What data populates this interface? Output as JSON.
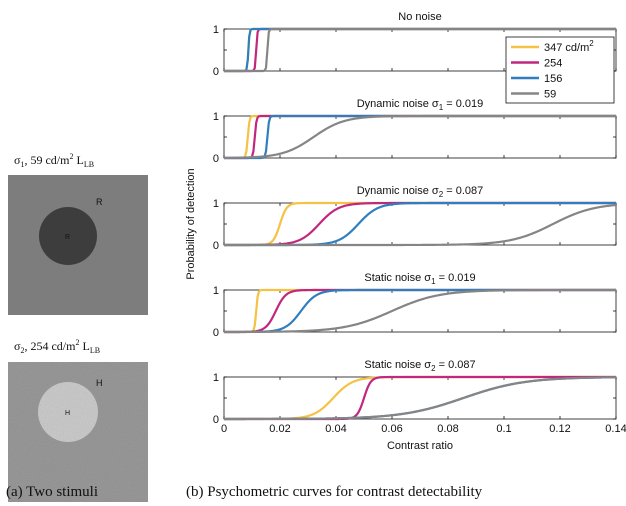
{
  "left_panel": {
    "stim1": {
      "sigma": "σ",
      "sigma_sub": "1",
      "lum_pre": ", 59 cd/m",
      "lum_sup": "2",
      "lum_mid": " L",
      "lum_sub": "LB",
      "letters": [
        "R",
        "R"
      ]
    },
    "stim2": {
      "sigma": "σ",
      "sigma_sub": "2",
      "lum_pre": ", 254 cd/m",
      "lum_sup": "2",
      "lum_mid": " L",
      "lum_sub": "LB",
      "letters": [
        "H",
        "H"
      ]
    },
    "caption": "(a) Two stimuli"
  },
  "right_caption": "(b) Psychometric curves for contrast detectability",
  "colors": {
    "347": "#f5c243",
    "254": "#c0287e",
    "156": "#2f7fbf",
    "59": "#858585"
  },
  "chart_data": {
    "type": "line",
    "shared": {
      "xlabel": "Contrast ratio",
      "ylabel": "Probability of detection",
      "xlim": [
        0,
        0.14
      ],
      "ylim": [
        0,
        1
      ],
      "xticks": [
        "0",
        "0.02",
        "0.04",
        "0.06",
        "0.08",
        "0.1",
        "0.12",
        "0.14"
      ],
      "yticks": [
        "0",
        "0.5",
        "1"
      ],
      "legend": [
        {
          "name": "347 cd/m",
          "sup": "2",
          "key": "347"
        },
        {
          "name": "254",
          "key": "254"
        },
        {
          "name": "156",
          "key": "156"
        },
        {
          "name": "59",
          "key": "59"
        }
      ],
      "legend_position": "top-right of first panel"
    },
    "panels": [
      {
        "title": "No noise",
        "title_sub": "",
        "title_post": "",
        "grid": false,
        "series": [
          {
            "key": "347",
            "mid": 0.0087,
            "width": 0.0002
          },
          {
            "key": "254",
            "mid": 0.0115,
            "width": 0.0002
          },
          {
            "key": "156",
            "mid": 0.0087,
            "width": 0.0002
          },
          {
            "key": "59",
            "mid": 0.0155,
            "width": 0.0002
          }
        ]
      },
      {
        "title": "Dynamic noise σ",
        "title_sub": "1",
        "title_post": " = 0.019",
        "grid": false,
        "series": [
          {
            "key": "347",
            "mid": 0.0085,
            "width": 0.0003
          },
          {
            "key": "254",
            "mid": 0.011,
            "width": 0.0003
          },
          {
            "key": "156",
            "mid": 0.0155,
            "width": 0.0003
          },
          {
            "key": "59",
            "mid": 0.032,
            "width": 0.0055
          }
        ]
      },
      {
        "title": "Dynamic noise σ",
        "title_sub": "2",
        "title_post": " = 0.087",
        "grid": false,
        "series": [
          {
            "key": "347",
            "mid": 0.02,
            "width": 0.0012
          },
          {
            "key": "254",
            "mid": 0.034,
            "width": 0.0035
          },
          {
            "key": "156",
            "mid": 0.048,
            "width": 0.0035
          },
          {
            "key": "59",
            "mid": 0.1175,
            "width": 0.0075
          }
        ]
      },
      {
        "title": "Static noise σ",
        "title_sub": "1",
        "title_post": " = 0.019",
        "grid": false,
        "series": [
          {
            "key": "347",
            "mid": 0.0115,
            "width": 0.0003
          },
          {
            "key": "254",
            "mid": 0.0185,
            "width": 0.0018
          },
          {
            "key": "156",
            "mid": 0.0275,
            "width": 0.0028
          },
          {
            "key": "59",
            "mid": 0.06,
            "width": 0.0085
          }
        ]
      },
      {
        "title": "Static noise σ",
        "title_sub": "2",
        "title_post": " = 0.087",
        "grid": false,
        "series": [
          {
            "key": "347",
            "mid": 0.039,
            "width": 0.0035
          },
          {
            "key": "254",
            "mid": 0.05,
            "width": 0.0012
          },
          {
            "key": "156",
            "mid": 0.0855,
            "width": 0.011
          },
          {
            "key": "59",
            "mid": 0.0855,
            "width": 0.011
          }
        ]
      }
    ]
  }
}
